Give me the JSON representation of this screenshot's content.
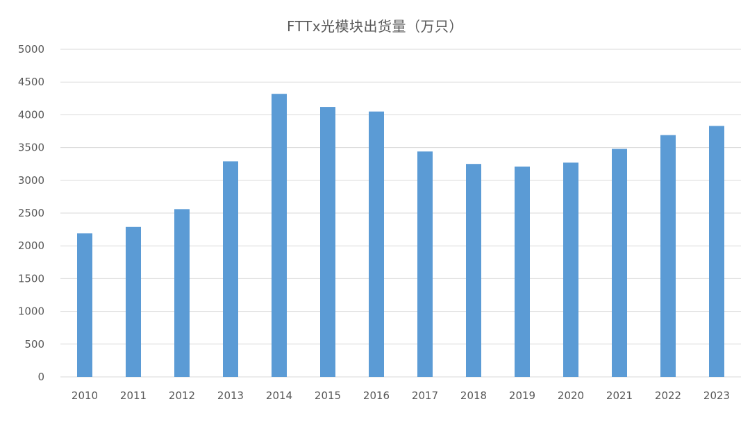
{
  "chart_data": {
    "type": "bar",
    "title": "FTTx光模块出货量（万只）",
    "categories": [
      "2010",
      "2011",
      "2012",
      "2013",
      "2014",
      "2015",
      "2016",
      "2017",
      "2018",
      "2019",
      "2020",
      "2021",
      "2022",
      "2023"
    ],
    "values": [
      2190,
      2290,
      2560,
      3290,
      4320,
      4120,
      4050,
      3440,
      3250,
      3210,
      3270,
      3480,
      3690,
      3830
    ],
    "ylim": [
      0,
      5000
    ],
    "yticks": [
      "0",
      "500",
      "1000",
      "1500",
      "2000",
      "2500",
      "3000",
      "3500",
      "4000",
      "4500",
      "5000"
    ],
    "xlabel": "",
    "ylabel": "",
    "grid": true,
    "legend": "none",
    "bar_color": "#5b9bd5"
  }
}
